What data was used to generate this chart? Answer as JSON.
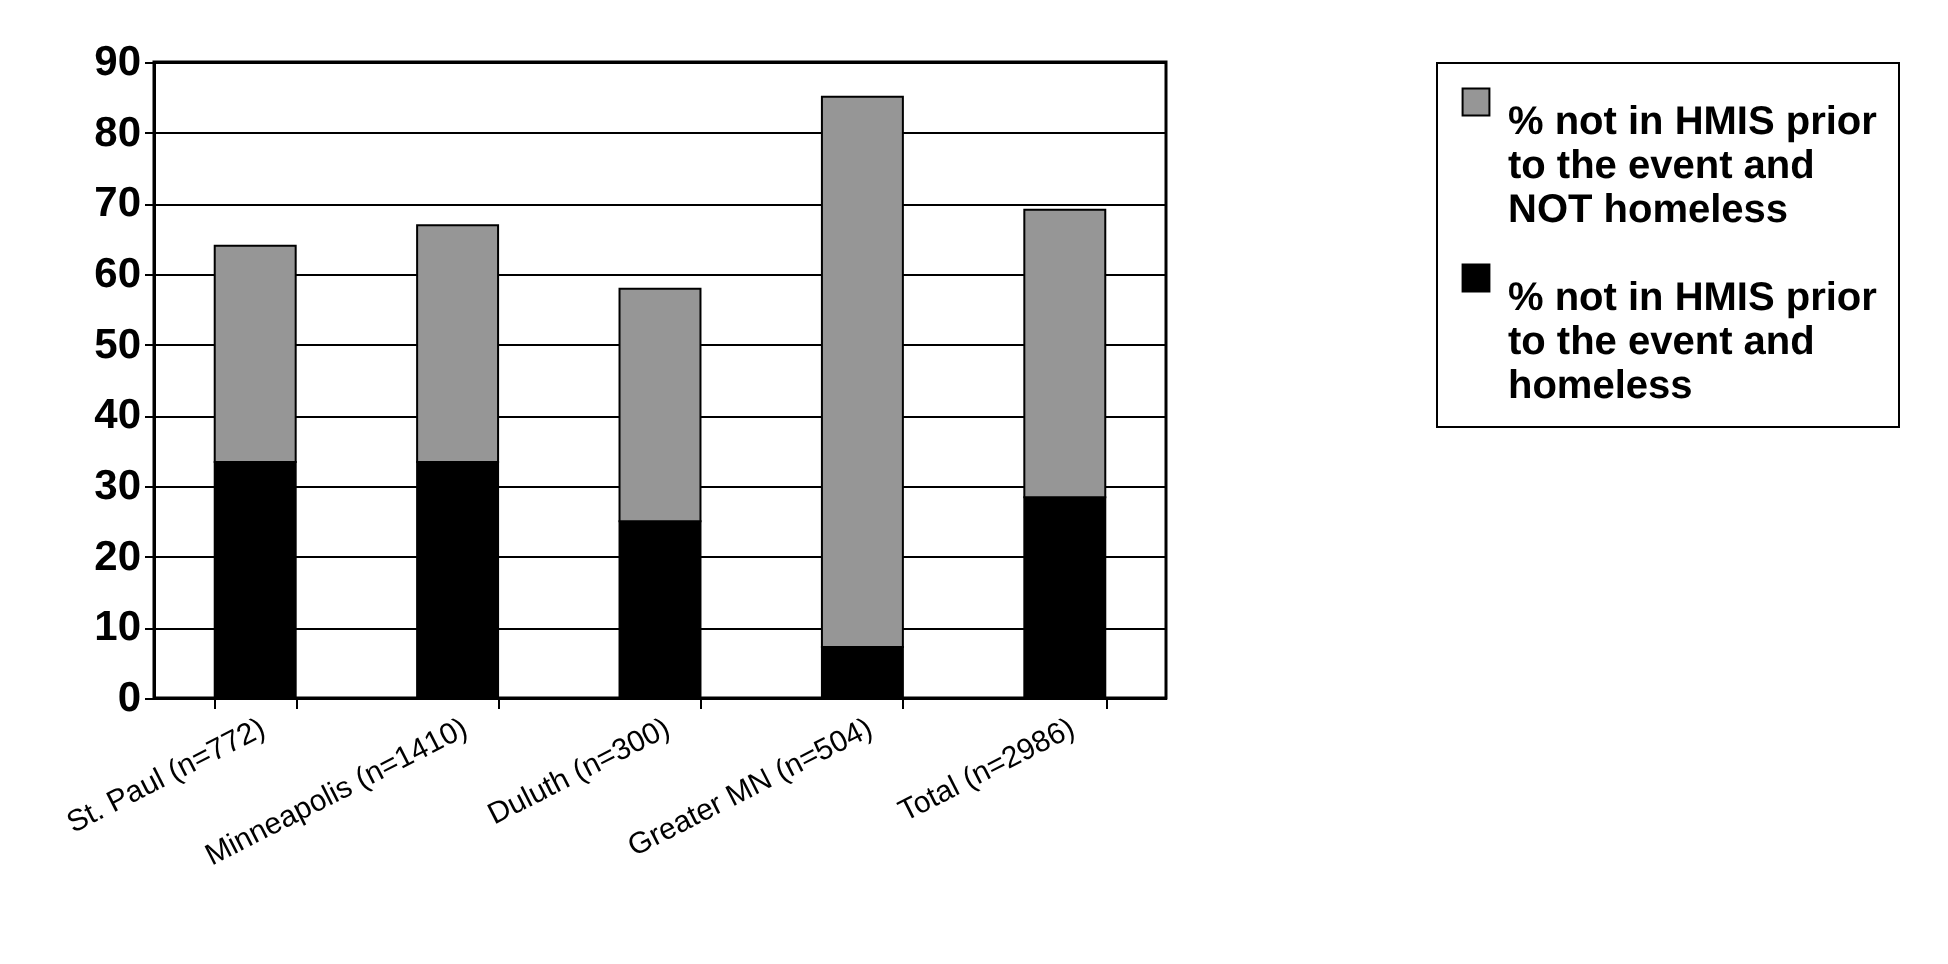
{
  "chart_data": {
    "type": "bar",
    "stacked": true,
    "categories": [
      "St. Paul (n=772)",
      "Minneapolis (n=1410)",
      "Duluth (n=300)",
      "Greater MN (n=504)",
      "Total (n=2986)"
    ],
    "series": [
      {
        "name": "% not in HMIS prior to the event and homeless",
        "color": "#000000",
        "values": [
          33.4,
          33.4,
          25,
          7.2,
          28.4
        ]
      },
      {
        "name": "% not in HMIS prior to the event and NOT homeless",
        "color": "#969696",
        "values": [
          30.6,
          33.5,
          32.9,
          77.9,
          40.7
        ]
      }
    ],
    "ylim": [
      0,
      90
    ],
    "yticks": [
      0,
      10,
      20,
      30,
      40,
      50,
      60,
      70,
      80,
      90
    ],
    "grid": "y",
    "legend": "right"
  }
}
